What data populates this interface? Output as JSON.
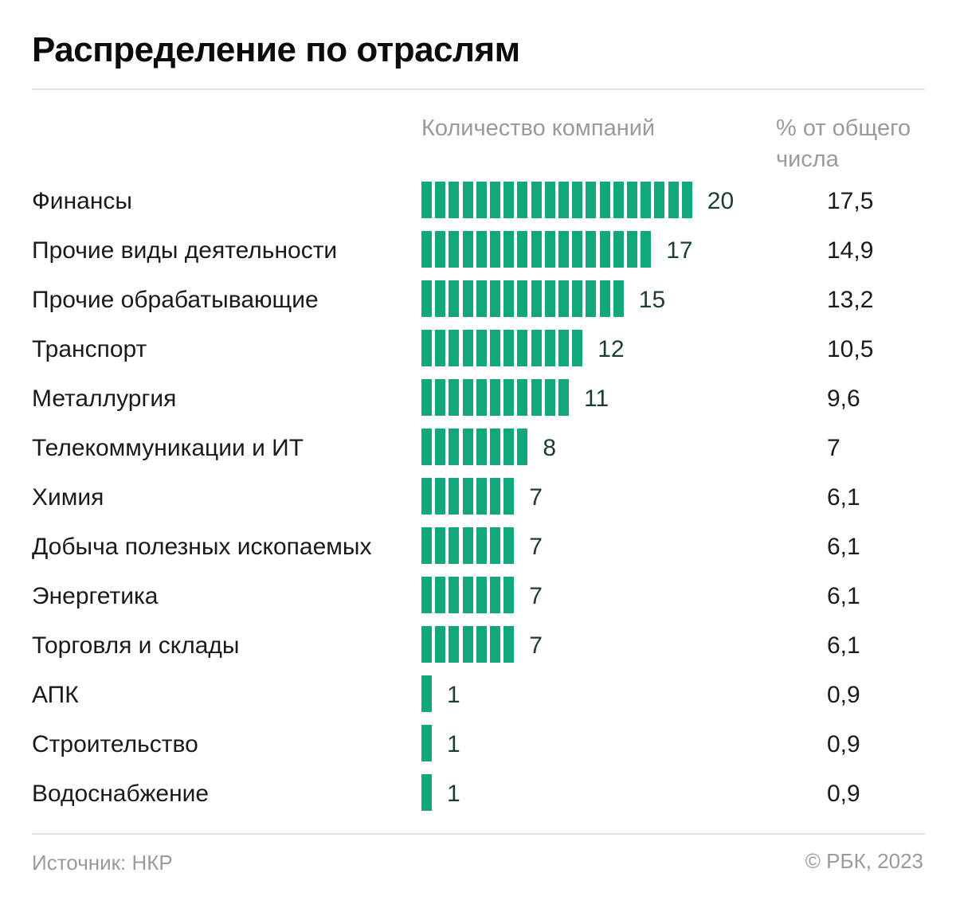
{
  "chart_data": {
    "type": "bar",
    "title": "Распределение по отраслям",
    "column_headers": {
      "count": "Количество компаний",
      "percent": "% от общего числа"
    },
    "categories": [
      "Финансы",
      "Прочие виды деятельности",
      "Прочие обрабатывающие",
      "Транспорт",
      "Металлургия",
      "Телекоммуникации и ИТ",
      "Химия",
      "Добыча полезных ископаемых",
      "Энергетика",
      "Торговля и склады",
      "АПК",
      "Строительство",
      "Водоснабжение"
    ],
    "values": [
      20,
      17,
      15,
      12,
      11,
      8,
      7,
      7,
      7,
      7,
      1,
      1,
      1
    ],
    "percent_labels": [
      "17,5",
      "14,9",
      "13,2",
      "10,5",
      "9,6",
      "7",
      "6,1",
      "6,1",
      "6,1",
      "6,1",
      "0,9",
      "0,9",
      "0,9"
    ],
    "bar_color": "#12a77c"
  },
  "footer": {
    "source": "Источник: НКР",
    "credit": "© РБК, 2023"
  }
}
